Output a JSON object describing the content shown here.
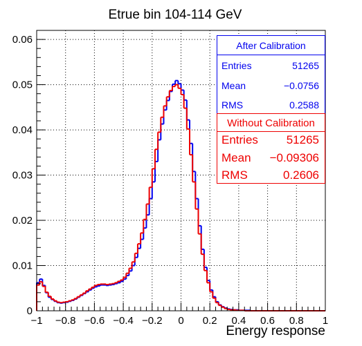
{
  "chart_data": {
    "type": "line",
    "title": "Etrue bin 104-114 GeV",
    "xlabel": "Energy response",
    "ylabel": "",
    "xlim": [
      -1,
      1
    ],
    "ylim": [
      0,
      0.062
    ],
    "grid": true,
    "x_ticks": [
      "−1",
      "−0.8",
      "−0.6",
      "−0.4",
      "−0.2",
      "0",
      "0.2",
      "0.4",
      "0.6",
      "0.8",
      "1"
    ],
    "x_tick_values": [
      -1,
      -0.8,
      -0.6,
      -0.4,
      -0.2,
      0,
      0.2,
      0.4,
      0.6,
      0.8,
      1
    ],
    "y_ticks": [
      "0",
      "0.01",
      "0.02",
      "0.03",
      "0.04",
      "0.05",
      "0.06"
    ],
    "y_tick_values": [
      0,
      0.01,
      0.02,
      0.03,
      0.04,
      0.05,
      0.06
    ],
    "bin_width": 0.02,
    "series": [
      {
        "name": "After Calibration",
        "color": "#0000ee",
        "bins": [
          -1.0,
          -0.98,
          -0.96,
          -0.94,
          -0.92,
          -0.9,
          -0.88,
          -0.86,
          -0.84,
          -0.82,
          -0.8,
          -0.78,
          -0.76,
          -0.74,
          -0.72,
          -0.7,
          -0.68,
          -0.66,
          -0.64,
          -0.62,
          -0.6,
          -0.58,
          -0.56,
          -0.54,
          -0.52,
          -0.5,
          -0.48,
          -0.46,
          -0.44,
          -0.42,
          -0.4,
          -0.38,
          -0.36,
          -0.34,
          -0.32,
          -0.3,
          -0.28,
          -0.26,
          -0.24,
          -0.22,
          -0.2,
          -0.18,
          -0.16,
          -0.14,
          -0.12,
          -0.1,
          -0.08,
          -0.06,
          -0.04,
          -0.02,
          0.0,
          0.02,
          0.04,
          0.06,
          0.08,
          0.1,
          0.12,
          0.14,
          0.16,
          0.18,
          0.2,
          0.22,
          0.24,
          0.26,
          0.28,
          0.3,
          0.32,
          0.34,
          0.36,
          0.38,
          0.4,
          0.42,
          0.44,
          0.46,
          0.48,
          0.5,
          0.52,
          0.54,
          0.56,
          0.58,
          0.6,
          0.62,
          0.64,
          0.66,
          0.68,
          0.7,
          0.72,
          0.74,
          0.76,
          0.78,
          0.8,
          0.82,
          0.84,
          0.86,
          0.88,
          0.9,
          0.92,
          0.94,
          0.96,
          0.98
        ],
        "values": [
          0.0062,
          0.007,
          0.0056,
          0.004,
          0.003,
          0.0025,
          0.0021,
          0.0018,
          0.0017,
          0.0018,
          0.0019,
          0.0021,
          0.0023,
          0.0026,
          0.003,
          0.0034,
          0.0038,
          0.0042,
          0.0046,
          0.005,
          0.0053,
          0.0055,
          0.0057,
          0.0057,
          0.0056,
          0.0057,
          0.0058,
          0.006,
          0.0062,
          0.0065,
          0.007,
          0.0078,
          0.0088,
          0.01,
          0.0118,
          0.0138,
          0.0158,
          0.0183,
          0.0212,
          0.0248,
          0.0285,
          0.033,
          0.0378,
          0.0413,
          0.0444,
          0.0465,
          0.0485,
          0.0501,
          0.0509,
          0.0502,
          0.0488,
          0.0466,
          0.0422,
          0.037,
          0.0308,
          0.0248,
          0.0188,
          0.0136,
          0.0096,
          0.0067,
          0.0046,
          0.0031,
          0.002,
          0.0013,
          0.0009,
          0.0006,
          0.0004,
          0.0003,
          0.0002,
          0.0002,
          0.0001,
          0.0001,
          0.0001,
          0.0001,
          0.0,
          0.0,
          0.0,
          0.0,
          0.0,
          0.0,
          0.0,
          0.0,
          0.0,
          0.0,
          0.0,
          0.0,
          0.0,
          0.0,
          0.0,
          0.0,
          0.0,
          0.0,
          0.0,
          0.0,
          0.0,
          0.0,
          0.0,
          0.0,
          0.0,
          0.0
        ]
      },
      {
        "name": "Without Calibration",
        "color": "#ee0000",
        "bins": [
          -1.0,
          -0.98,
          -0.96,
          -0.94,
          -0.92,
          -0.9,
          -0.88,
          -0.86,
          -0.84,
          -0.82,
          -0.8,
          -0.78,
          -0.76,
          -0.74,
          -0.72,
          -0.7,
          -0.68,
          -0.66,
          -0.64,
          -0.62,
          -0.6,
          -0.58,
          -0.56,
          -0.54,
          -0.52,
          -0.5,
          -0.48,
          -0.46,
          -0.44,
          -0.42,
          -0.4,
          -0.38,
          -0.36,
          -0.34,
          -0.32,
          -0.3,
          -0.28,
          -0.26,
          -0.24,
          -0.22,
          -0.2,
          -0.18,
          -0.16,
          -0.14,
          -0.12,
          -0.1,
          -0.08,
          -0.06,
          -0.04,
          -0.02,
          0.0,
          0.02,
          0.04,
          0.06,
          0.08,
          0.1,
          0.12,
          0.14,
          0.16,
          0.18,
          0.2,
          0.22,
          0.24,
          0.26,
          0.28,
          0.3,
          0.32,
          0.34,
          0.36,
          0.38,
          0.4,
          0.42,
          0.44,
          0.46,
          0.48,
          0.5,
          0.52,
          0.54,
          0.56,
          0.58,
          0.6,
          0.62,
          0.64,
          0.66,
          0.68,
          0.7,
          0.72,
          0.74,
          0.76,
          0.78,
          0.8,
          0.82,
          0.84,
          0.86,
          0.88,
          0.9,
          0.92,
          0.94,
          0.96,
          0.98
        ],
        "values": [
          0.0057,
          0.0064,
          0.0054,
          0.0041,
          0.0032,
          0.0026,
          0.0022,
          0.0019,
          0.0018,
          0.0019,
          0.002,
          0.0022,
          0.0024,
          0.0027,
          0.0031,
          0.0035,
          0.0039,
          0.0044,
          0.0048,
          0.0052,
          0.0056,
          0.0058,
          0.0059,
          0.0059,
          0.0058,
          0.0059,
          0.006,
          0.0062,
          0.0065,
          0.0068,
          0.0074,
          0.0083,
          0.0094,
          0.0108,
          0.0127,
          0.0148,
          0.0172,
          0.0202,
          0.0236,
          0.0273,
          0.0314,
          0.0357,
          0.0395,
          0.0428,
          0.0453,
          0.0473,
          0.0487,
          0.0496,
          0.05,
          0.0492,
          0.0478,
          0.0448,
          0.0402,
          0.0345,
          0.0285,
          0.0225,
          0.017,
          0.0125,
          0.0089,
          0.0062,
          0.0042,
          0.0028,
          0.0018,
          0.0012,
          0.0008,
          0.0005,
          0.0003,
          0.0002,
          0.0002,
          0.0001,
          0.0001,
          0.0001,
          0.0,
          0.0,
          0.0,
          0.0,
          0.0,
          0.0,
          0.0,
          0.0,
          0.0,
          0.0,
          0.0,
          0.0,
          0.0,
          0.0,
          0.0,
          0.0,
          0.0,
          0.0,
          0.0,
          0.0,
          0.0,
          0.0,
          0.0,
          0.0,
          0.0,
          0.0,
          0.0,
          0.0
        ]
      }
    ]
  },
  "stats": {
    "after": {
      "title": "After Calibration",
      "color": "#0000ee",
      "rows": [
        {
          "label": "Entries",
          "value": "51265"
        },
        {
          "label": "Mean",
          "value": "−0.0756"
        },
        {
          "label": "RMS",
          "value": "0.2588"
        }
      ]
    },
    "without": {
      "title": "Without Calibration",
      "color": "#ee0000",
      "rows": [
        {
          "label": "Entries",
          "value": "51265"
        },
        {
          "label": "Mean",
          "value": "−0.09306"
        },
        {
          "label": "RMS",
          "value": "0.2606"
        }
      ]
    }
  }
}
